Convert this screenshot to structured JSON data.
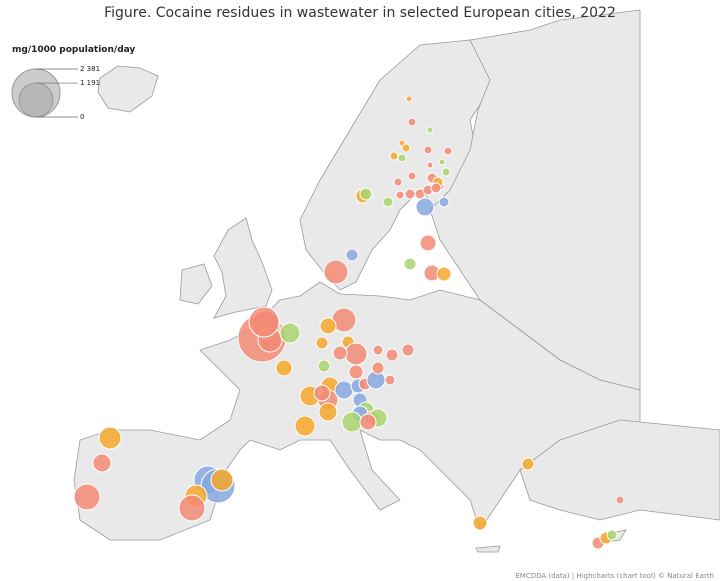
{
  "chart_data": {
    "type": "bubble-map",
    "title": "Figure. Cocaine residues in wastewater in selected European cities, 2022",
    "credits": "EMCDDA (data) | Highcharts (chart tool) © Natural Earth",
    "legend": {
      "title": "mg/1000 population/day",
      "ticks": [
        {
          "value": 2381,
          "label": "2 381"
        },
        {
          "value": 1191,
          "label": "1 191"
        },
        0
      ]
    },
    "bubbles": [
      {
        "value": 2381,
        "color": "#f28a74"
      },
      {
        "value": 810,
        "color": "#f28a74"
      },
      {
        "value": 595,
        "color": "#f28a74"
      },
      {
        "value": 413,
        "color": "#aad46e"
      },
      {
        "value": 930,
        "color": "#f28a74"
      },
      {
        "value": 595,
        "color": "#f28a74"
      },
      {
        "value": 265,
        "color": "#f5a72c"
      },
      {
        "value": 149,
        "color": "#f5a72c"
      },
      {
        "value": 149,
        "color": "#f5a72c"
      },
      {
        "value": 500,
        "color": "#f28a74"
      },
      {
        "value": 203,
        "color": "#f28a74"
      },
      {
        "value": 149,
        "color": "#aad46e"
      },
      {
        "value": 265,
        "color": "#f5a72c"
      },
      {
        "value": 335,
        "color": "#f5a72c"
      },
      {
        "value": 413,
        "color": "#f5a72c"
      },
      {
        "value": 413,
        "color": "#f28a74"
      },
      {
        "value": 265,
        "color": "#f28a74"
      },
      {
        "value": 335,
        "color": "#87a8e0"
      },
      {
        "value": 203,
        "color": "#87a8e0"
      },
      {
        "value": 149,
        "color": "#f28a74"
      },
      {
        "value": 335,
        "color": "#87a8e0"
      },
      {
        "value": 149,
        "color": "#f28a74"
      },
      {
        "value": 103,
        "color": "#f28a74"
      },
      {
        "value": 203,
        "color": "#87a8e0"
      },
      {
        "value": 265,
        "color": "#aad46e"
      },
      {
        "value": 265,
        "color": "#87a8e0"
      },
      {
        "value": 203,
        "color": "#f28a74"
      },
      {
        "value": 413,
        "color": "#aad46e"
      },
      {
        "value": 335,
        "color": "#aad46e"
      },
      {
        "value": 265,
        "color": "#f28a74"
      },
      {
        "value": 335,
        "color": "#f5a72c"
      },
      {
        "value": 413,
        "color": "#f5a72c"
      },
      {
        "value": 203,
        "color": "#f28a74"
      },
      {
        "value": 149,
        "color": "#f28a74"
      },
      {
        "value": 149,
        "color": "#f28a74"
      },
      {
        "value": 103,
        "color": "#f28a74"
      },
      {
        "value": 500,
        "color": "#f5a72c"
      },
      {
        "value": 335,
        "color": "#f28a74"
      },
      {
        "value": 699,
        "color": "#f28a74"
      },
      {
        "value": 810,
        "color": "#87a8e0"
      },
      {
        "value": 1195,
        "color": "#87a8e0"
      },
      {
        "value": 500,
        "color": "#f5a72c"
      },
      {
        "value": 500,
        "color": "#f5a72c"
      },
      {
        "value": 699,
        "color": "#f28a74"
      },
      {
        "value": 595,
        "color": "#f28a74"
      },
      {
        "value": 149,
        "color": "#87a8e0"
      },
      {
        "value": 203,
        "color": "#f5a72c"
      },
      {
        "value": 149,
        "color": "#aad46e"
      },
      {
        "value": 103,
        "color": "#aad46e"
      },
      {
        "value": 335,
        "color": "#87a8e0"
      },
      {
        "value": 103,
        "color": "#87a8e0"
      },
      {
        "value": 265,
        "color": "#f28a74"
      },
      {
        "value": 149,
        "color": "#aad46e"
      },
      {
        "value": 265,
        "color": "#f28a74"
      },
      {
        "value": 203,
        "color": "#f5a72c"
      },
      {
        "value": 37,
        "color": "#f5a72c"
      },
      {
        "value": 66,
        "color": "#f28a74"
      },
      {
        "value": 37,
        "color": "#aad46e"
      },
      {
        "value": 37,
        "color": "#f5a72c"
      },
      {
        "value": 66,
        "color": "#f5a72c"
      },
      {
        "value": 66,
        "color": "#f28a74"
      },
      {
        "value": 66,
        "color": "#f28a74"
      },
      {
        "value": 66,
        "color": "#f5a72c"
      },
      {
        "value": 66,
        "color": "#aad46e"
      },
      {
        "value": 66,
        "color": "#f28a74"
      },
      {
        "value": 37,
        "color": "#f28a74"
      },
      {
        "value": 37,
        "color": "#aad46e"
      },
      {
        "value": 66,
        "color": "#aad46e"
      },
      {
        "value": 103,
        "color": "#f28a74"
      },
      {
        "value": 66,
        "color": "#f28a74"
      },
      {
        "value": 103,
        "color": "#f5a72c"
      },
      {
        "value": 66,
        "color": "#f28a74"
      },
      {
        "value": 66,
        "color": "#f28a74"
      },
      {
        "value": 103,
        "color": "#f28a74"
      },
      {
        "value": 103,
        "color": "#f28a74"
      },
      {
        "value": 103,
        "color": "#f28a74"
      },
      {
        "value": 103,
        "color": "#f28a74"
      },
      {
        "value": 149,
        "color": "#f5a72c"
      },
      {
        "value": 203,
        "color": "#f5a72c"
      },
      {
        "value": 66,
        "color": "#f28a74"
      },
      {
        "value": 149,
        "color": "#f28a74"
      },
      {
        "value": 149,
        "color": "#f5a72c"
      },
      {
        "value": 103,
        "color": "#aad46e"
      }
    ]
  }
}
